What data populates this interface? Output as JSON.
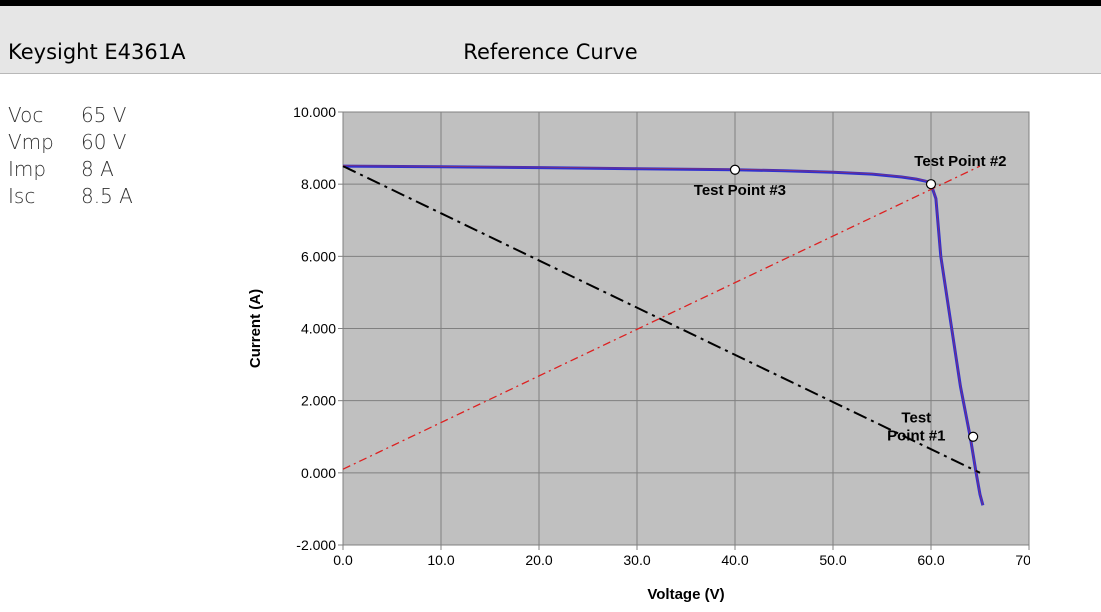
{
  "header": {
    "model": "Keysight E4361A",
    "title": "Reference Curve"
  },
  "parameters": [
    {
      "name": "Voc",
      "value": "65 V"
    },
    {
      "name": "Vmp",
      "value": "60 V"
    },
    {
      "name": "Imp",
      "value": "8 A"
    },
    {
      "name": "Isc",
      "value": "8.5 A"
    }
  ],
  "chart_data": {
    "type": "line",
    "title": "",
    "xlabel": "Voltage (V)",
    "ylabel": "Current (A)",
    "xlim": [
      0,
      70
    ],
    "ylim": [
      -2,
      10
    ],
    "grid": true,
    "xticks": [
      "0.0",
      "10.0",
      "20.0",
      "30.0",
      "40.0",
      "50.0",
      "60.0",
      "70.0"
    ],
    "yticks": [
      "-2.000",
      "0.000",
      "2.000",
      "4.000",
      "6.000",
      "8.000",
      "10.000"
    ],
    "series": [
      {
        "color": "#3030d0",
        "style": "solid",
        "x": [
          0,
          10,
          20,
          30,
          40,
          45,
          50,
          54,
          57,
          58.5,
          59.5,
          60,
          60.5,
          61,
          62,
          63,
          64,
          64.6,
          65,
          65.3
        ],
        "y": [
          8.5,
          8.48,
          8.46,
          8.43,
          8.4,
          8.37,
          8.33,
          8.28,
          8.2,
          8.14,
          8.08,
          8.0,
          7.6,
          6.0,
          4.2,
          2.4,
          1.0,
          0.0,
          -0.6,
          -0.9
        ]
      },
      {
        "color": "#000000",
        "style": "dashdot",
        "x": [
          0,
          65
        ],
        "y": [
          8.5,
          0
        ]
      },
      {
        "color": "#dd2020",
        "style": "dashdot",
        "x": [
          0,
          65
        ],
        "y": [
          0.1,
          8.5
        ]
      }
    ],
    "annotations": [
      {
        "lines": [
          "Test Point #3"
        ],
        "x": 40,
        "y": 8.4,
        "label_x": 40.5,
        "label_y": 7.7
      },
      {
        "lines": [
          "Test Point #2"
        ],
        "x": 60,
        "y": 8.0,
        "label_x": 63,
        "label_y": 8.5
      },
      {
        "lines": [
          "Test",
          "Point #1"
        ],
        "x": 64.3,
        "y": 1.0,
        "label_x": 58.5,
        "label_y": 1.4
      }
    ]
  }
}
